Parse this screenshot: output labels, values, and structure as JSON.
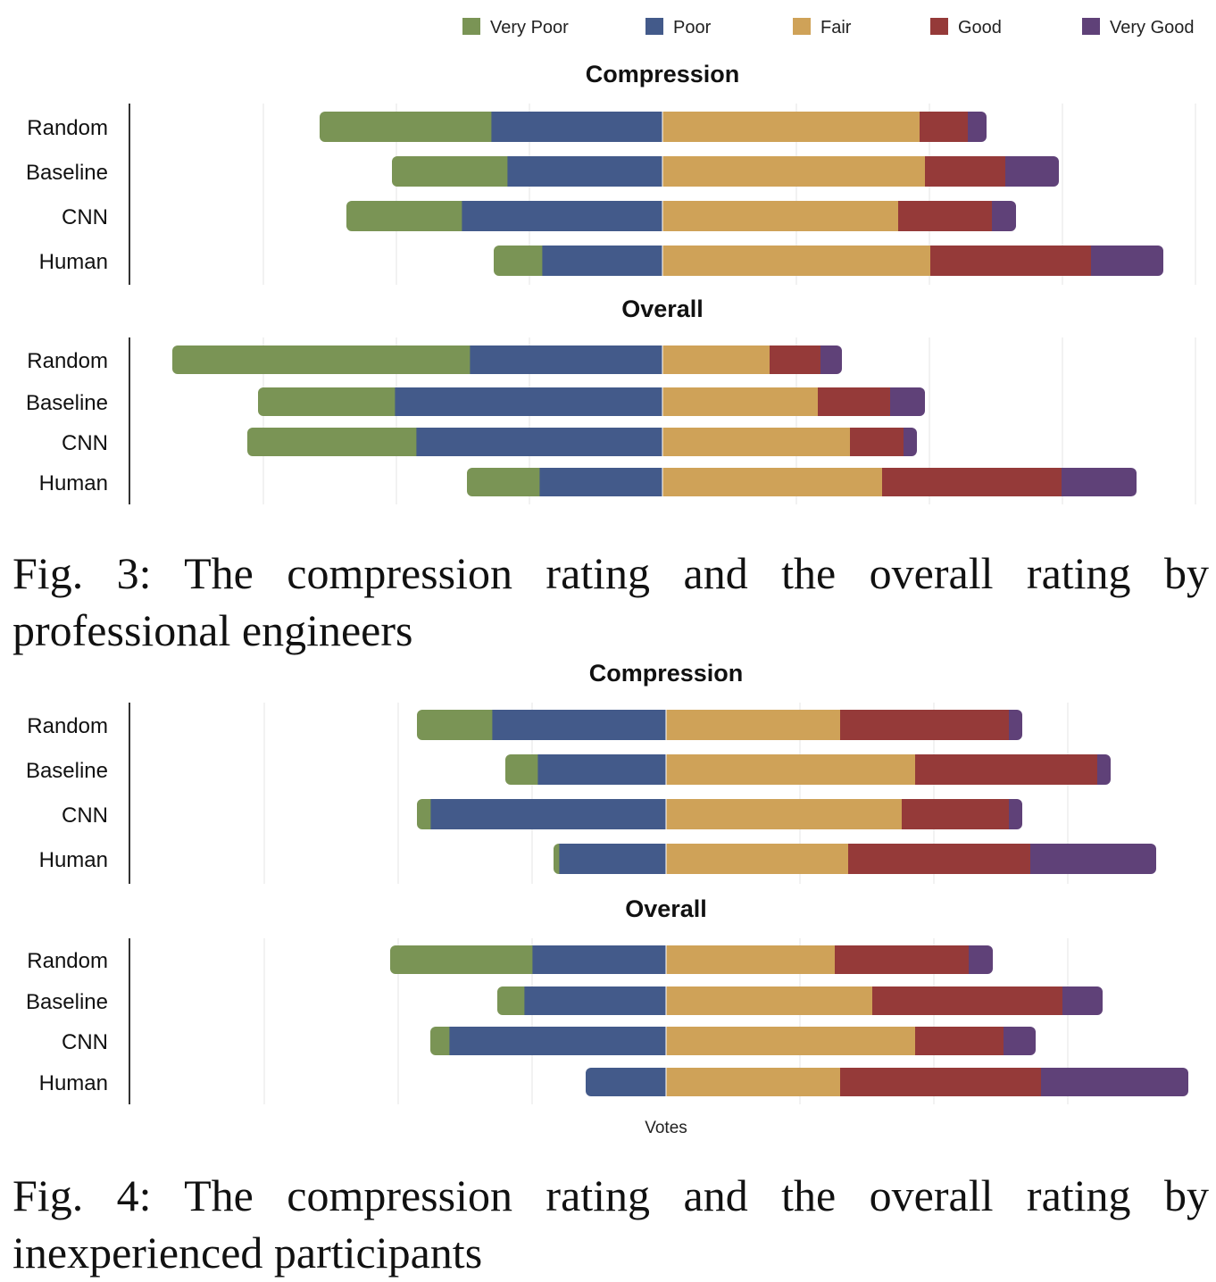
{
  "legend": [
    {
      "label": "Very Poor",
      "color": "#7a9455"
    },
    {
      "label": "Poor",
      "color": "#435a8a"
    },
    {
      "label": "Fair",
      "color": "#cfa258"
    },
    {
      "label": "Good",
      "color": "#953a39"
    },
    {
      "label": "Very Good",
      "color": "#5f4178"
    }
  ],
  "captions": {
    "fig3_line1": "Fig. 3: The compression rating and the overall rating by",
    "fig3_line2": "professional engineers",
    "fig4_line1": "Fig. 4: The compression rating and the overall rating by",
    "fig4_line2": "inexperienced participants"
  },
  "chart_data": [
    {
      "type": "bar",
      "orientation": "horizontal-diverging",
      "figure": "Fig. 3",
      "title": "Compression",
      "xlabel": "",
      "categories": [
        "Random",
        "Baseline",
        "CNN",
        "Human"
      ],
      "series": [
        {
          "name": "Very Poor",
          "values": [
            -6.4,
            -4.3,
            -4.3,
            -1.8
          ]
        },
        {
          "name": "Poor",
          "values": [
            -6.4,
            -5.8,
            -7.5,
            -4.5
          ]
        },
        {
          "name": "Fair",
          "values": [
            9.6,
            9.8,
            8.8,
            10.0
          ]
        },
        {
          "name": "Good",
          "values": [
            1.8,
            3.0,
            3.5,
            6.0
          ]
        },
        {
          "name": "Very Good",
          "values": [
            0.7,
            2.0,
            0.9,
            2.7
          ]
        }
      ]
    },
    {
      "type": "bar",
      "orientation": "horizontal-diverging",
      "figure": "Fig. 3",
      "title": "Overall",
      "xlabel": "",
      "categories": [
        "Random",
        "Baseline",
        "CNN",
        "Human"
      ],
      "series": [
        {
          "name": "Very Poor",
          "values": [
            -11.1,
            -5.1,
            -6.3,
            -2.7
          ]
        },
        {
          "name": "Poor",
          "values": [
            -7.2,
            -10.0,
            -9.2,
            -4.6
          ]
        },
        {
          "name": "Fair",
          "values": [
            4.0,
            5.8,
            7.0,
            8.2
          ]
        },
        {
          "name": "Good",
          "values": [
            1.9,
            2.7,
            2.0,
            6.7
          ]
        },
        {
          "name": "Very Good",
          "values": [
            0.8,
            1.3,
            0.5,
            2.8
          ]
        }
      ]
    },
    {
      "type": "bar",
      "orientation": "horizontal-diverging",
      "figure": "Fig. 4",
      "title": "Compression",
      "xlabel": "",
      "categories": [
        "Random",
        "Baseline",
        "CNN",
        "Human"
      ],
      "series": [
        {
          "name": "Very Poor",
          "values": [
            -2.8,
            -1.2,
            -0.5,
            -0.2
          ]
        },
        {
          "name": "Poor",
          "values": [
            -6.5,
            -4.8,
            -8.8,
            -4.0
          ]
        },
        {
          "name": "Fair",
          "values": [
            6.5,
            9.3,
            8.8,
            6.8
          ]
        },
        {
          "name": "Good",
          "values": [
            6.3,
            6.8,
            4.0,
            6.8
          ]
        },
        {
          "name": "Very Good",
          "values": [
            0.5,
            0.5,
            0.5,
            4.7
          ]
        }
      ]
    },
    {
      "type": "bar",
      "orientation": "horizontal-diverging",
      "figure": "Fig. 4",
      "title": "Overall",
      "xlabel": "Votes",
      "categories": [
        "Random",
        "Baseline",
        "CNN",
        "Human"
      ],
      "series": [
        {
          "name": "Very Poor",
          "values": [
            -5.3,
            -1.0,
            -0.7,
            0
          ]
        },
        {
          "name": "Poor",
          "values": [
            -5.0,
            -5.3,
            -8.1,
            -3.0
          ]
        },
        {
          "name": "Fair",
          "values": [
            6.3,
            7.7,
            9.3,
            6.5
          ]
        },
        {
          "name": "Good",
          "values": [
            5.0,
            7.1,
            3.3,
            7.5
          ]
        },
        {
          "name": "Very Good",
          "values": [
            0.9,
            1.5,
            1.2,
            5.5
          ]
        }
      ]
    }
  ]
}
